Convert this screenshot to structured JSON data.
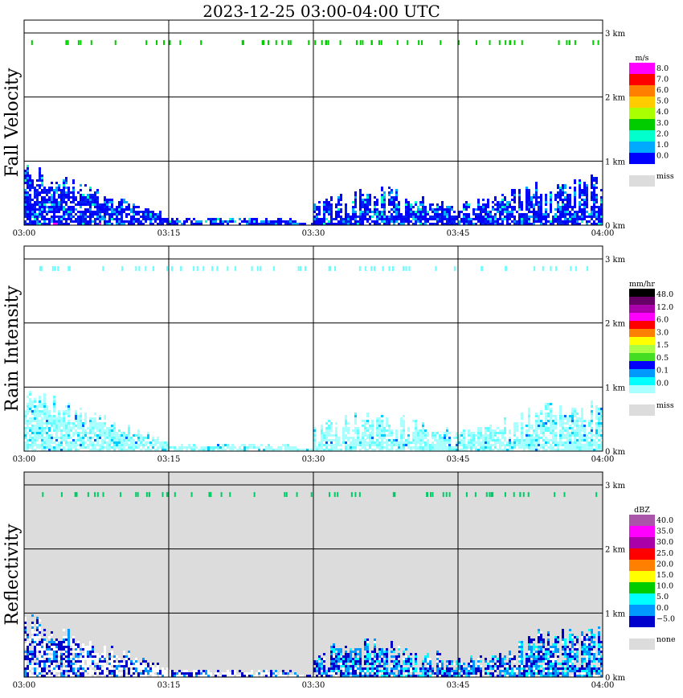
{
  "title": "2023-12-25   03:00-04:00 UTC",
  "chart_data": [
    {
      "type": "heatmap",
      "ylabel": "Fall Velocity",
      "background": "white",
      "x_ticks": [
        "03:00",
        "03:15",
        "03:30",
        "03:45",
        "04:00"
      ],
      "y_ticks": [
        "1 km",
        "2 km",
        "3 km",
        "0 km"
      ],
      "ylim_km": [
        0,
        3.2
      ],
      "grid": true,
      "colorbar": {
        "unit": "m/s",
        "labels": [
          "8.0",
          "7.0",
          "6.0",
          "5.0",
          "4.0",
          "3.0",
          "2.0",
          "1.0",
          "0.0"
        ],
        "colors": [
          "#ff00ff",
          "#ff0000",
          "#ff7f00",
          "#ffcc00",
          "#aaff00",
          "#00cc00",
          "#00ffcc",
          "#00aaff",
          "#0000ff"
        ],
        "miss_label": "miss",
        "miss_color": "#dcdcdc"
      }
    },
    {
      "type": "heatmap",
      "ylabel": "Rain Intensity",
      "background": "white",
      "x_ticks": [
        "03:00",
        "03:15",
        "03:30",
        "03:45",
        "04:00"
      ],
      "y_ticks": [
        "1 km",
        "2 km",
        "3 km",
        "0 km"
      ],
      "ylim_km": [
        0,
        3.2
      ],
      "grid": true,
      "colorbar": {
        "unit": "mm/hr",
        "labels": [
          "48.0",
          "12.0",
          "6.0",
          "3.0",
          "1.5",
          "0.5",
          "0.1",
          "0.0"
        ],
        "colors": [
          "#000000",
          "#660066",
          "#aa00aa",
          "#ff00ff",
          "#ff0000",
          "#ff7f00",
          "#ffff00",
          "#aaff44",
          "#44dd22",
          "#0000ff",
          "#0099ff",
          "#00ffff",
          "#aaffff"
        ],
        "miss_label": "miss",
        "miss_color": "#dcdcdc"
      }
    },
    {
      "type": "heatmap",
      "ylabel": "Reflectivity",
      "background": "#dcdcdc",
      "x_ticks": [
        "03:00",
        "03:15",
        "03:30",
        "03:45",
        "04:00"
      ],
      "y_ticks": [
        "1 km",
        "2 km",
        "3 km",
        "0 km"
      ],
      "ylim_km": [
        0,
        3.2
      ],
      "grid": true,
      "colorbar": {
        "unit": "dBZ",
        "labels": [
          "40.0",
          "35.0",
          "30.0",
          "25.0",
          "20.0",
          "15.0",
          "10.0",
          "5.0",
          "0.0",
          "−5.0"
        ],
        "colors": [
          "#aa55aa",
          "#ff00ff",
          "#aa00aa",
          "#ff0000",
          "#ff7f00",
          "#ffff00",
          "#00cc00",
          "#00ffff",
          "#0099ff",
          "#0000cc"
        ],
        "miss_label": "none",
        "miss_color": "#dcdcdc"
      }
    }
  ]
}
